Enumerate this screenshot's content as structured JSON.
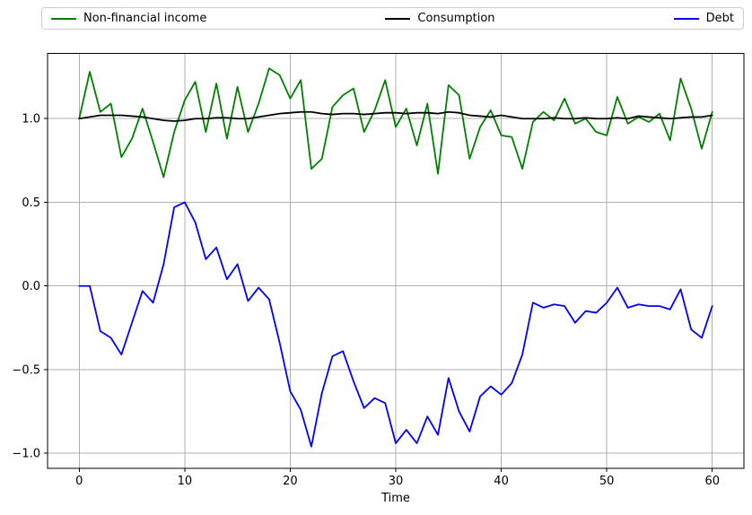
{
  "figure": {
    "background": "#ffffff"
  },
  "legend": {
    "items": [
      {
        "label": "Non-financial income",
        "color": "#008000"
      },
      {
        "label": "Consumption",
        "color": "#000000"
      },
      {
        "label": "Debt",
        "color": "#0000ff"
      }
    ]
  },
  "axes": {
    "xlabel": "Time",
    "xticks": [
      0,
      10,
      20,
      30,
      40,
      50,
      60
    ],
    "xticklabels": [
      "0",
      "10",
      "20",
      "30",
      "40",
      "50",
      "60"
    ],
    "yticks": [
      -1.0,
      -0.5,
      0.0,
      0.5,
      1.0
    ],
    "yticklabels": [
      "−1.0",
      "−0.5",
      "0.0",
      "0.5",
      "1.0"
    ],
    "grid_color": "#b0b0b0",
    "spine_color": "#000000"
  },
  "chart_data": {
    "type": "line",
    "title": "",
    "xlabel": "Time",
    "ylabel": "",
    "xlim": [
      -3,
      63
    ],
    "ylim": [
      -1.09,
      1.39
    ],
    "grid": true,
    "legend_position": "top-horizontal",
    "x": [
      0,
      1,
      2,
      3,
      4,
      5,
      6,
      7,
      8,
      9,
      10,
      11,
      12,
      13,
      14,
      15,
      16,
      17,
      18,
      19,
      20,
      21,
      22,
      23,
      24,
      25,
      26,
      27,
      28,
      29,
      30,
      31,
      32,
      33,
      34,
      35,
      36,
      37,
      38,
      39,
      40,
      41,
      42,
      43,
      44,
      45,
      46,
      47,
      48,
      49,
      50,
      51,
      52,
      53,
      54,
      55,
      56,
      57,
      58,
      59,
      60
    ],
    "series": [
      {
        "name": "Non-financial income",
        "color": "#008000",
        "values": [
          1.0,
          1.28,
          1.04,
          1.09,
          0.77,
          0.88,
          1.06,
          0.86,
          0.65,
          0.92,
          1.11,
          1.22,
          0.92,
          1.21,
          0.88,
          1.19,
          0.92,
          1.09,
          1.3,
          1.26,
          1.12,
          1.23,
          0.7,
          0.76,
          1.07,
          1.14,
          1.18,
          0.92,
          1.05,
          1.23,
          0.95,
          1.06,
          0.84,
          1.09,
          0.67,
          1.2,
          1.14,
          0.76,
          0.95,
          1.05,
          0.9,
          0.89,
          0.7,
          0.98,
          1.04,
          0.99,
          1.12,
          0.97,
          1.0,
          0.92,
          0.9,
          1.13,
          0.97,
          1.01,
          0.98,
          1.03,
          0.87,
          1.24,
          1.06,
          0.82,
          1.04
        ]
      },
      {
        "name": "Consumption",
        "color": "#000000",
        "values": [
          1.0,
          1.01,
          1.02,
          1.02,
          1.02,
          1.015,
          1.01,
          1.0,
          0.99,
          0.985,
          0.99,
          1.0,
          1.0,
          1.005,
          1.005,
          1.0,
          1.0,
          1.01,
          1.02,
          1.03,
          1.035,
          1.04,
          1.04,
          1.03,
          1.025,
          1.03,
          1.03,
          1.025,
          1.03,
          1.035,
          1.035,
          1.03,
          1.035,
          1.035,
          1.03,
          1.04,
          1.035,
          1.02,
          1.015,
          1.01,
          1.02,
          1.01,
          1.0,
          1.0,
          1.0,
          1.005,
          1.0,
          1.0,
          1.005,
          1.0,
          1.0,
          1.005,
          1.0,
          1.015,
          1.01,
          1.005,
          1.0,
          1.005,
          1.01,
          1.01,
          1.02
        ]
      },
      {
        "name": "Debt",
        "color": "#0000ff",
        "values": [
          0.0,
          0.0,
          -0.27,
          -0.31,
          -0.41,
          -0.22,
          -0.03,
          -0.1,
          0.13,
          0.47,
          0.5,
          0.38,
          0.16,
          0.23,
          0.04,
          0.13,
          -0.09,
          -0.01,
          -0.08,
          -0.34,
          -0.63,
          -0.74,
          -0.96,
          -0.64,
          -0.42,
          -0.39,
          -0.57,
          -0.73,
          -0.67,
          -0.7,
          -0.94,
          -0.86,
          -0.94,
          -0.78,
          -0.89,
          -0.55,
          -0.75,
          -0.87,
          -0.66,
          -0.6,
          -0.65,
          -0.58,
          -0.41,
          -0.1,
          -0.13,
          -0.11,
          -0.12,
          -0.22,
          -0.15,
          -0.16,
          -0.1,
          -0.01,
          -0.13,
          -0.11,
          -0.12,
          -0.12,
          -0.14,
          -0.02,
          -0.26,
          -0.31,
          -0.12
        ]
      }
    ]
  }
}
